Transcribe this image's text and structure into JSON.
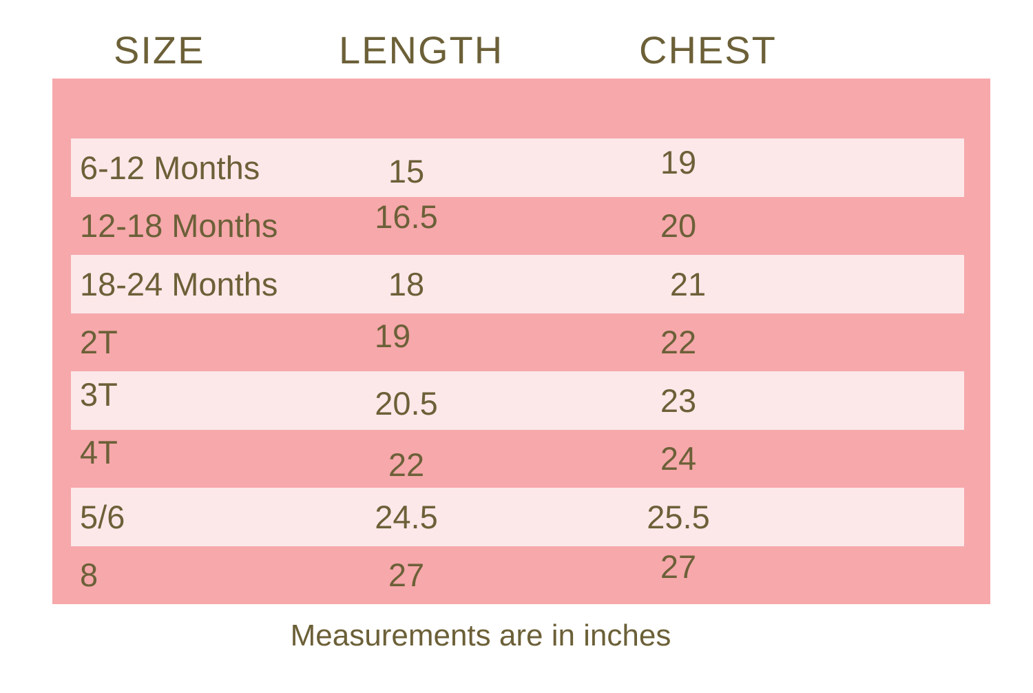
{
  "colors": {
    "panel_pink": "#F6A8AB",
    "row_light_pink": "#FCE8E9",
    "text_olive": "#6C6038",
    "background": "#FFFFFF"
  },
  "table": {
    "columns": [
      {
        "label": "SIZE"
      },
      {
        "label": "LENGTH"
      },
      {
        "label": "CHEST"
      }
    ],
    "rows": [
      {
        "size": "6-12 Months",
        "length": "15",
        "chest": "19"
      },
      {
        "size": "12-18 Months",
        "length": "16.5",
        "chest": "20"
      },
      {
        "size": "18-24 Months",
        "length": "18",
        "chest": "21"
      },
      {
        "size": "2T",
        "length": "19",
        "chest": "22"
      },
      {
        "size": "3T",
        "length": "20.5",
        "chest": "23"
      },
      {
        "size": "4T",
        "length": "22",
        "chest": "24"
      },
      {
        "size": "5/6",
        "length": "24.5",
        "chest": "25.5"
      },
      {
        "size": "8",
        "length": "27",
        "chest": "27"
      }
    ],
    "footer": "Measurements are in inches"
  },
  "chart_data": {
    "type": "table",
    "title": "",
    "columns": [
      "SIZE",
      "LENGTH",
      "CHEST"
    ],
    "units": "inches",
    "rows": [
      [
        "6-12 Months",
        15,
        19
      ],
      [
        "12-18 Months",
        16.5,
        20
      ],
      [
        "18-24 Months",
        18,
        21
      ],
      [
        "2T",
        19,
        22
      ],
      [
        "3T",
        20.5,
        23
      ],
      [
        "4T",
        22,
        24
      ],
      [
        "5/6",
        24.5,
        25.5
      ],
      [
        "8",
        27,
        27
      ]
    ],
    "note": "Measurements are in inches"
  }
}
